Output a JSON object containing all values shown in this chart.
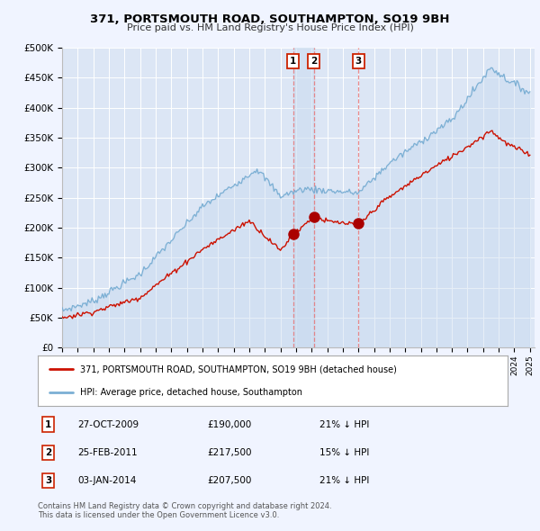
{
  "title": "371, PORTSMOUTH ROAD, SOUTHAMPTON, SO19 9BH",
  "subtitle": "Price paid vs. HM Land Registry's House Price Index (HPI)",
  "background_color": "#f0f4ff",
  "plot_bg_color": "#dce6f5",
  "ylim": [
    0,
    500000
  ],
  "yticks": [
    0,
    50000,
    100000,
    150000,
    200000,
    250000,
    300000,
    350000,
    400000,
    450000,
    500000
  ],
  "legend_label_red": "371, PORTSMOUTH ROAD, SOUTHAMPTON, SO19 9BH (detached house)",
  "legend_label_blue": "HPI: Average price, detached house, Southampton",
  "transactions": [
    {
      "num": 1,
      "date": "27-OCT-2009",
      "price": 190000,
      "x": 2009.82,
      "pct": "21% ↓ HPI"
    },
    {
      "num": 2,
      "date": "25-FEB-2011",
      "price": 217500,
      "x": 2011.15,
      "pct": "15% ↓ HPI"
    },
    {
      "num": 3,
      "date": "03-JAN-2014",
      "price": 207500,
      "x": 2014.01,
      "pct": "21% ↓ HPI"
    }
  ],
  "footer": "Contains HM Land Registry data © Crown copyright and database right 2024.\nThis data is licensed under the Open Government Licence v3.0.",
  "hpi_color": "#7bafd4",
  "hpi_fill_color": "#c5d8ee",
  "price_color": "#cc1100",
  "vline_color": "#e87070",
  "marker_color": "#aa0000",
  "shade_color": "#ccddf0",
  "xlim_left": 1995.0,
  "xlim_right": 2025.3
}
